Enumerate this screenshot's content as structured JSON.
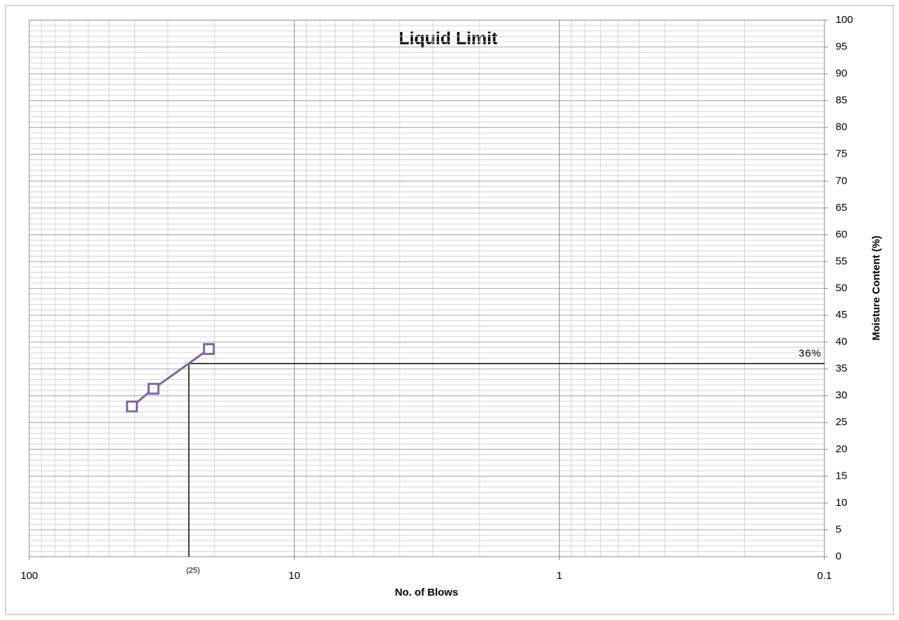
{
  "chart_data": {
    "type": "line",
    "title": "Liquid Limit",
    "xlabel": "No. of Blows",
    "ylabel": "Moisture Content (%)",
    "x": [
      41,
      34,
      21
    ],
    "series": [
      {
        "color": "#8064a2",
        "values": [
          28,
          31.3,
          38.7
        ]
      }
    ],
    "xlim": [
      100,
      0.1
    ],
    "xticks": [
      100,
      10,
      1,
      0.1
    ],
    "log_x": true,
    "ylim": [
      0,
      100
    ],
    "yticks": [
      0,
      5,
      10,
      15,
      20,
      25,
      30,
      35,
      40,
      45,
      50,
      55,
      60,
      65,
      70,
      75,
      80,
      85,
      90,
      95,
      100
    ],
    "y_axis_side": "right",
    "grid": true,
    "minor_grid": true,
    "annotations": {
      "liquid_limit": {
        "x": 25,
        "y": 36,
        "x_label": "(25)",
        "y_label": "36%"
      }
    }
  }
}
